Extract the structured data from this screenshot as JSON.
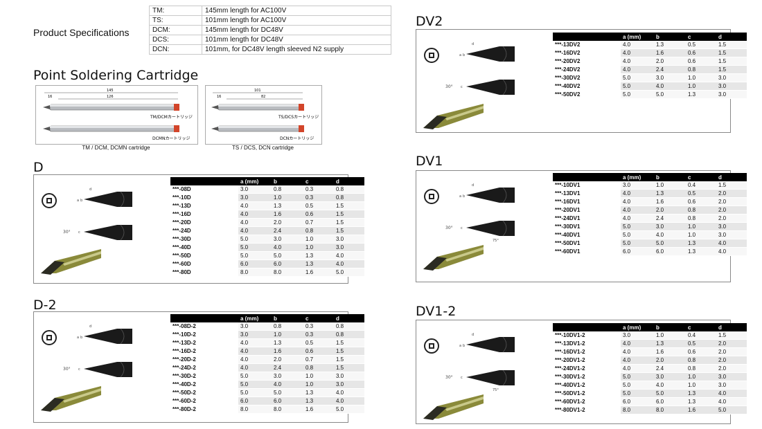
{
  "product_spec": {
    "title": "Product Specifications",
    "rows": [
      {
        "k": "TM:",
        "v": "145mm length for AC100V"
      },
      {
        "k": "TS:",
        "v": "101mm length for AC100V"
      },
      {
        "k": "DCM:",
        "v": "145mm length for DC48V"
      },
      {
        "k": "DCS:",
        "v": "101mm length for DC48V"
      },
      {
        "k": "DCN:",
        "v": "101mm, for DC48V length sleeved N2 supply"
      }
    ]
  },
  "cartridge": {
    "title": "Point Soldering Cartridge",
    "left": {
      "caption": "TM / DCM, DCMN cartridge",
      "label1": "TM/DCMカートリッジ",
      "label2": "DCMNカートリッジ",
      "dim_total": "145",
      "dim_inner": "126",
      "dim_left": "16"
    },
    "right": {
      "caption": "TS / DCS, DCN cartridge",
      "label1": "TS/DCSカートリッジ",
      "label2": "DCNカートリッジ",
      "dim_total": "101",
      "dim_inner": "82",
      "dim_left": "16"
    }
  },
  "headers": [
    "",
    "a (mm)",
    "b",
    "c",
    "d"
  ],
  "sections": {
    "D": {
      "title": "D",
      "rows": [
        [
          "***-08D",
          "3.0",
          "0.8",
          "0.3",
          "0.8"
        ],
        [
          "***-10D",
          "3.0",
          "1.0",
          "0.3",
          "0.8"
        ],
        [
          "***-13D",
          "4.0",
          "1.3",
          "0.5",
          "1.5"
        ],
        [
          "***-16D",
          "4.0",
          "1.6",
          "0.6",
          "1.5"
        ],
        [
          "***-20D",
          "4.0",
          "2.0",
          "0.7",
          "1.5"
        ],
        [
          "***-24D",
          "4.0",
          "2.4",
          "0.8",
          "1.5"
        ],
        [
          "***-30D",
          "5.0",
          "3.0",
          "1.0",
          "3.0"
        ],
        [
          "***-40D",
          "5.0",
          "4.0",
          "1.0",
          "3.0"
        ],
        [
          "***-50D",
          "5.0",
          "5.0",
          "1.3",
          "4.0"
        ],
        [
          "***-60D",
          "6.0",
          "6.0",
          "1.3",
          "4.0"
        ],
        [
          "***-80D",
          "8.0",
          "8.0",
          "1.6",
          "5.0"
        ]
      ]
    },
    "D2": {
      "title": "D-2",
      "rows": [
        [
          "***-08D-2",
          "3.0",
          "0.8",
          "0.3",
          "0.8"
        ],
        [
          "***-10D-2",
          "3.0",
          "1.0",
          "0.3",
          "0.8"
        ],
        [
          "***-13D-2",
          "4.0",
          "1.3",
          "0.5",
          "1.5"
        ],
        [
          "***-16D-2",
          "4.0",
          "1.6",
          "0.6",
          "1.5"
        ],
        [
          "***-20D-2",
          "4.0",
          "2.0",
          "0.7",
          "1.5"
        ],
        [
          "***-24D-2",
          "4.0",
          "2.4",
          "0.8",
          "1.5"
        ],
        [
          "***-30D-2",
          "5.0",
          "3.0",
          "1.0",
          "3.0"
        ],
        [
          "***-40D-2",
          "5.0",
          "4.0",
          "1.0",
          "3.0"
        ],
        [
          "***-50D-2",
          "5.0",
          "5.0",
          "1.3",
          "4.0"
        ],
        [
          "***-60D-2",
          "6.0",
          "6.0",
          "1.3",
          "4.0"
        ],
        [
          "***-80D-2",
          "8.0",
          "8.0",
          "1.6",
          "5.0"
        ]
      ]
    },
    "DV2": {
      "title": "DV2",
      "rows": [
        [
          "***-13DV2",
          "4.0",
          "1.3",
          "0.5",
          "1.5"
        ],
        [
          "***-16DV2",
          "4.0",
          "1.6",
          "0.6",
          "1.5"
        ],
        [
          "***-20DV2",
          "4.0",
          "2.0",
          "0.6",
          "1.5"
        ],
        [
          "***-24DV2",
          "4.0",
          "2.4",
          "0.8",
          "1.5"
        ],
        [
          "***-30DV2",
          "5.0",
          "3.0",
          "1.0",
          "3.0"
        ],
        [
          "***-40DV2",
          "5.0",
          "4.0",
          "1.0",
          "3.0"
        ],
        [
          "***-50DV2",
          "5.0",
          "5.0",
          "1.3",
          "3.0"
        ]
      ]
    },
    "DV1": {
      "title": "DV1",
      "rows": [
        [
          "***-10DV1",
          "3.0",
          "1.0",
          "0.4",
          "1.5"
        ],
        [
          "***-13DV1",
          "4.0",
          "1.3",
          "0.5",
          "2.0"
        ],
        [
          "***-16DV1",
          "4.0",
          "1.6",
          "0.6",
          "2.0"
        ],
        [
          "***-20DV1",
          "4.0",
          "2.0",
          "0.8",
          "2.0"
        ],
        [
          "***-24DV1",
          "4.0",
          "2.4",
          "0.8",
          "2.0"
        ],
        [
          "***-30DV1",
          "5.0",
          "3.0",
          "1.0",
          "3.0"
        ],
        [
          "***-40DV1",
          "5.0",
          "4.0",
          "1.0",
          "3.0"
        ],
        [
          "***-50DV1",
          "5.0",
          "5.0",
          "1.3",
          "4.0"
        ],
        [
          "***-60DV1",
          "6.0",
          "6.0",
          "1.3",
          "4.0"
        ]
      ]
    },
    "DV12": {
      "title": "DV1-2",
      "rows": [
        [
          "***-10DV1-2",
          "3.0",
          "1.0",
          "0.4",
          "1.5"
        ],
        [
          "***-13DV1-2",
          "4.0",
          "1.3",
          "0.5",
          "2.0"
        ],
        [
          "***-16DV1-2",
          "4.0",
          "1.6",
          "0.6",
          "2.0"
        ],
        [
          "***-20DV1-2",
          "4.0",
          "2.0",
          "0.8",
          "2.0"
        ],
        [
          "***-24DV1-2",
          "4.0",
          "2.4",
          "0.8",
          "2.0"
        ],
        [
          "***-30DV1-2",
          "5.0",
          "3.0",
          "1.0",
          "3.0"
        ],
        [
          "***-40DV1-2",
          "5.0",
          "4.0",
          "1.0",
          "3.0"
        ],
        [
          "***-50DV1-2",
          "5.0",
          "5.0",
          "1.3",
          "4.0"
        ],
        [
          "***-60DV1-2",
          "6.0",
          "6.0",
          "1.3",
          "4.0"
        ],
        [
          "***-80DV1-2",
          "8.0",
          "8.0",
          "1.6",
          "5.0"
        ]
      ]
    }
  },
  "drawing": {
    "angle": "30°",
    "angle2": "75°",
    "dim_a": "a",
    "dim_b": "b",
    "dim_c": "c",
    "dim_d": "d"
  }
}
